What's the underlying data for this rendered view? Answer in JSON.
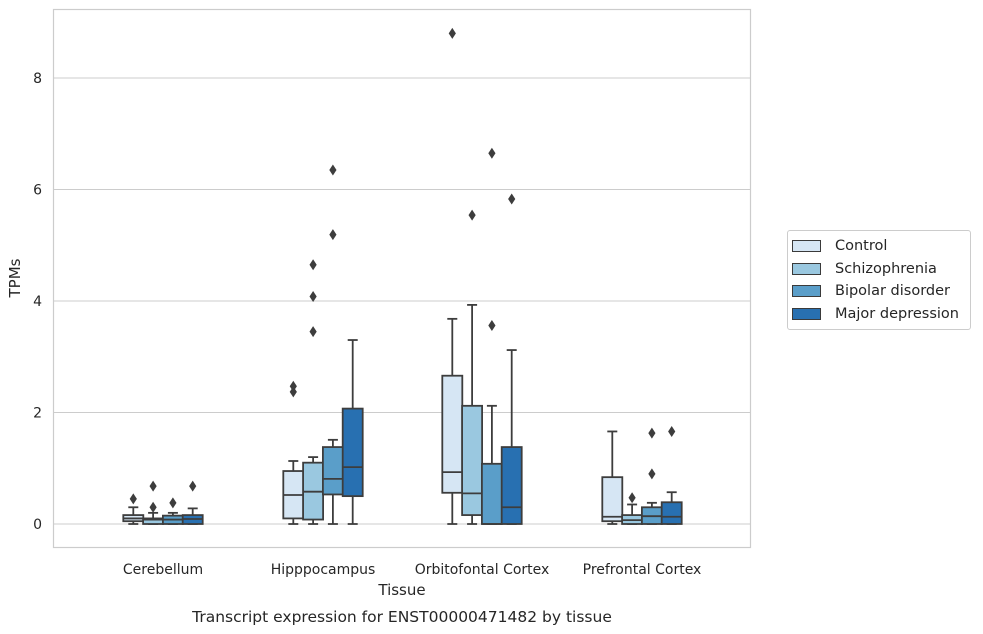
{
  "chart_data": {
    "type": "box",
    "caption": "Transcript expression for ENST00000471482 by tissue",
    "xlabel": "Tissue",
    "ylabel": "TPMs",
    "ylim": [
      -0.43,
      9.3
    ],
    "yticks": [
      0,
      2,
      4,
      6,
      8
    ],
    "grid": "horizontal",
    "legend_position": "right",
    "categories": [
      "Cerebellum",
      "Hipppocampus",
      "Orbitofontal Cortex",
      "Prefrontal Cortex"
    ],
    "series": [
      {
        "name": "Control",
        "color": "#d6e6f4",
        "boxes": [
          {
            "whisker_low": 0.0,
            "q1": 0.05,
            "median": 0.1,
            "q3": 0.16,
            "whisker_high": 0.3,
            "outliers": [
              0.45
            ]
          },
          {
            "whisker_low": 0.0,
            "q1": 0.1,
            "median": 0.52,
            "q3": 0.95,
            "whisker_high": 1.13,
            "outliers": [
              2.37,
              2.47
            ]
          },
          {
            "whisker_low": 0.0,
            "q1": 0.56,
            "median": 0.93,
            "q3": 2.66,
            "whisker_high": 3.68,
            "outliers": [
              8.8
            ]
          },
          {
            "whisker_low": 0.0,
            "q1": 0.05,
            "median": 0.13,
            "q3": 0.84,
            "whisker_high": 1.66,
            "outliers": []
          }
        ]
      },
      {
        "name": "Schizophrenia",
        "color": "#9ac8e0",
        "boxes": [
          {
            "whisker_low": 0.0,
            "q1": 0.0,
            "median": 0.08,
            "q3": 0.1,
            "whisker_high": 0.2,
            "outliers": [
              0.3,
              0.68
            ]
          },
          {
            "whisker_low": 0.0,
            "q1": 0.08,
            "median": 0.58,
            "q3": 1.1,
            "whisker_high": 1.2,
            "outliers": [
              3.45,
              4.08,
              4.65
            ]
          },
          {
            "whisker_low": 0.0,
            "q1": 0.16,
            "median": 0.55,
            "q3": 2.12,
            "whisker_high": 3.93,
            "outliers": [
              5.54
            ]
          },
          {
            "whisker_low": 0.0,
            "q1": 0.0,
            "median": 0.07,
            "q3": 0.16,
            "whisker_high": 0.35,
            "outliers": [
              0.47
            ]
          }
        ]
      },
      {
        "name": "Bipolar disorder",
        "color": "#5a9ec9",
        "boxes": [
          {
            "whisker_low": 0.0,
            "q1": 0.0,
            "median": 0.08,
            "q3": 0.15,
            "whisker_high": 0.2,
            "outliers": [
              0.38
            ]
          },
          {
            "whisker_low": 0.0,
            "q1": 0.53,
            "median": 0.81,
            "q3": 1.38,
            "whisker_high": 1.51,
            "outliers": [
              5.19,
              6.35
            ]
          },
          {
            "whisker_low": 0.0,
            "q1": 0.0,
            "median": 0.0,
            "q3": 1.08,
            "whisker_high": 2.12,
            "outliers": [
              3.56,
              6.65
            ]
          },
          {
            "whisker_low": 0.0,
            "q1": 0.0,
            "median": 0.14,
            "q3": 0.3,
            "whisker_high": 0.38,
            "outliers": [
              0.9,
              1.63
            ]
          }
        ]
      },
      {
        "name": "Major depression",
        "color": "#2870b1",
        "boxes": [
          {
            "whisker_low": 0.0,
            "q1": 0.0,
            "median": 0.09,
            "q3": 0.16,
            "whisker_high": 0.28,
            "outliers": [
              0.68
            ]
          },
          {
            "whisker_low": 0.0,
            "q1": 0.5,
            "median": 1.02,
            "q3": 2.07,
            "whisker_high": 3.3,
            "outliers": []
          },
          {
            "whisker_low": 0.0,
            "q1": 0.0,
            "median": 0.3,
            "q3": 1.38,
            "whisker_high": 3.12,
            "outliers": [
              5.83
            ]
          },
          {
            "whisker_low": 0.0,
            "q1": 0.0,
            "median": 0.13,
            "q3": 0.39,
            "whisker_high": 0.57,
            "outliers": [
              1.66
            ]
          }
        ]
      }
    ]
  }
}
